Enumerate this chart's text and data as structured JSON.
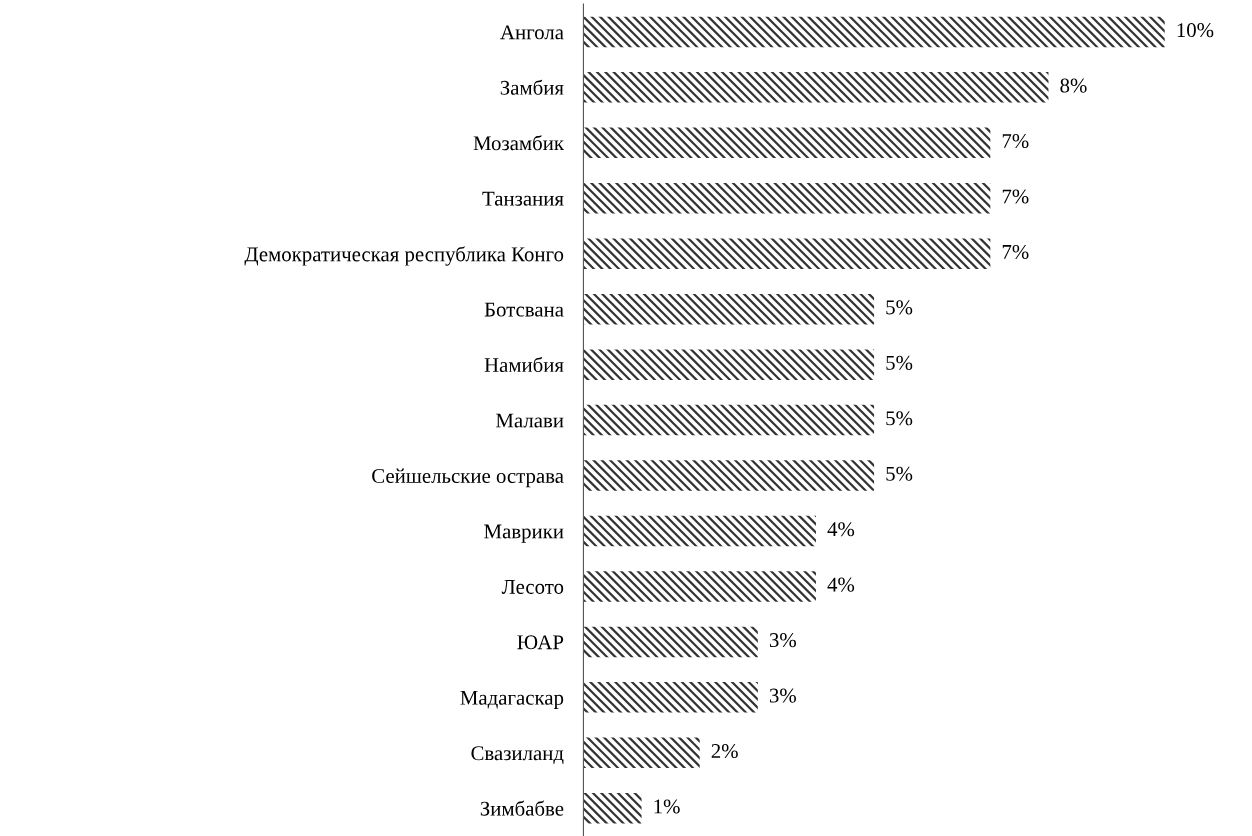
{
  "chart_data": {
    "type": "bar",
    "orientation": "horizontal",
    "categories": [
      "Ангола",
      "Замбия",
      "Мозамбик",
      "Танзания",
      "Демократическая республика Конго",
      "Ботсвана",
      "Намибия",
      "Малави",
      "Сейшельские острава",
      "Маврики",
      "Лесото",
      "ЮАР",
      "Мадагаскар",
      "Свазиланд",
      "Зимбабве"
    ],
    "values": [
      10,
      8,
      7,
      7,
      7,
      5,
      5,
      5,
      5,
      4,
      4,
      3,
      3,
      2,
      1
    ],
    "value_labels": [
      "10%",
      "8%",
      "7%",
      "7%",
      "7%",
      "5%",
      "5%",
      "5%",
      "5%",
      "4%",
      "4%",
      "3%",
      "3%",
      "2%",
      "1%"
    ],
    "color": "#333333",
    "grid": false,
    "legend": false
  }
}
